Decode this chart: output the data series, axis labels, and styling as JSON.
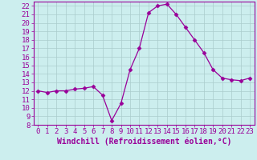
{
  "x": [
    0,
    1,
    2,
    3,
    4,
    5,
    6,
    7,
    8,
    9,
    10,
    11,
    12,
    13,
    14,
    15,
    16,
    17,
    18,
    19,
    20,
    21,
    22,
    23
  ],
  "y": [
    12.0,
    11.8,
    12.0,
    12.0,
    12.2,
    12.3,
    12.5,
    11.5,
    8.5,
    10.5,
    14.5,
    17.0,
    21.2,
    22.0,
    22.2,
    21.0,
    19.5,
    18.0,
    16.5,
    14.5,
    13.5,
    13.3,
    13.2,
    13.5
  ],
  "line_color": "#990099",
  "marker": "D",
  "marker_size": 2.5,
  "bg_color": "#cceeee",
  "grid_color": "#aacccc",
  "axis_color": "#990099",
  "xlabel": "Windchill (Refroidissement éolien,°C)",
  "xlabel_color": "#990099",
  "ylim": [
    8,
    22.5
  ],
  "xlim": [
    -0.5,
    23.5
  ],
  "yticks": [
    8,
    9,
    10,
    11,
    12,
    13,
    14,
    15,
    16,
    17,
    18,
    19,
    20,
    21,
    22
  ],
  "xticks": [
    0,
    1,
    2,
    3,
    4,
    5,
    6,
    7,
    8,
    9,
    10,
    11,
    12,
    13,
    14,
    15,
    16,
    17,
    18,
    19,
    20,
    21,
    22,
    23
  ],
  "tick_color": "#990099",
  "tick_label_color": "#990099",
  "font_size": 6.5
}
